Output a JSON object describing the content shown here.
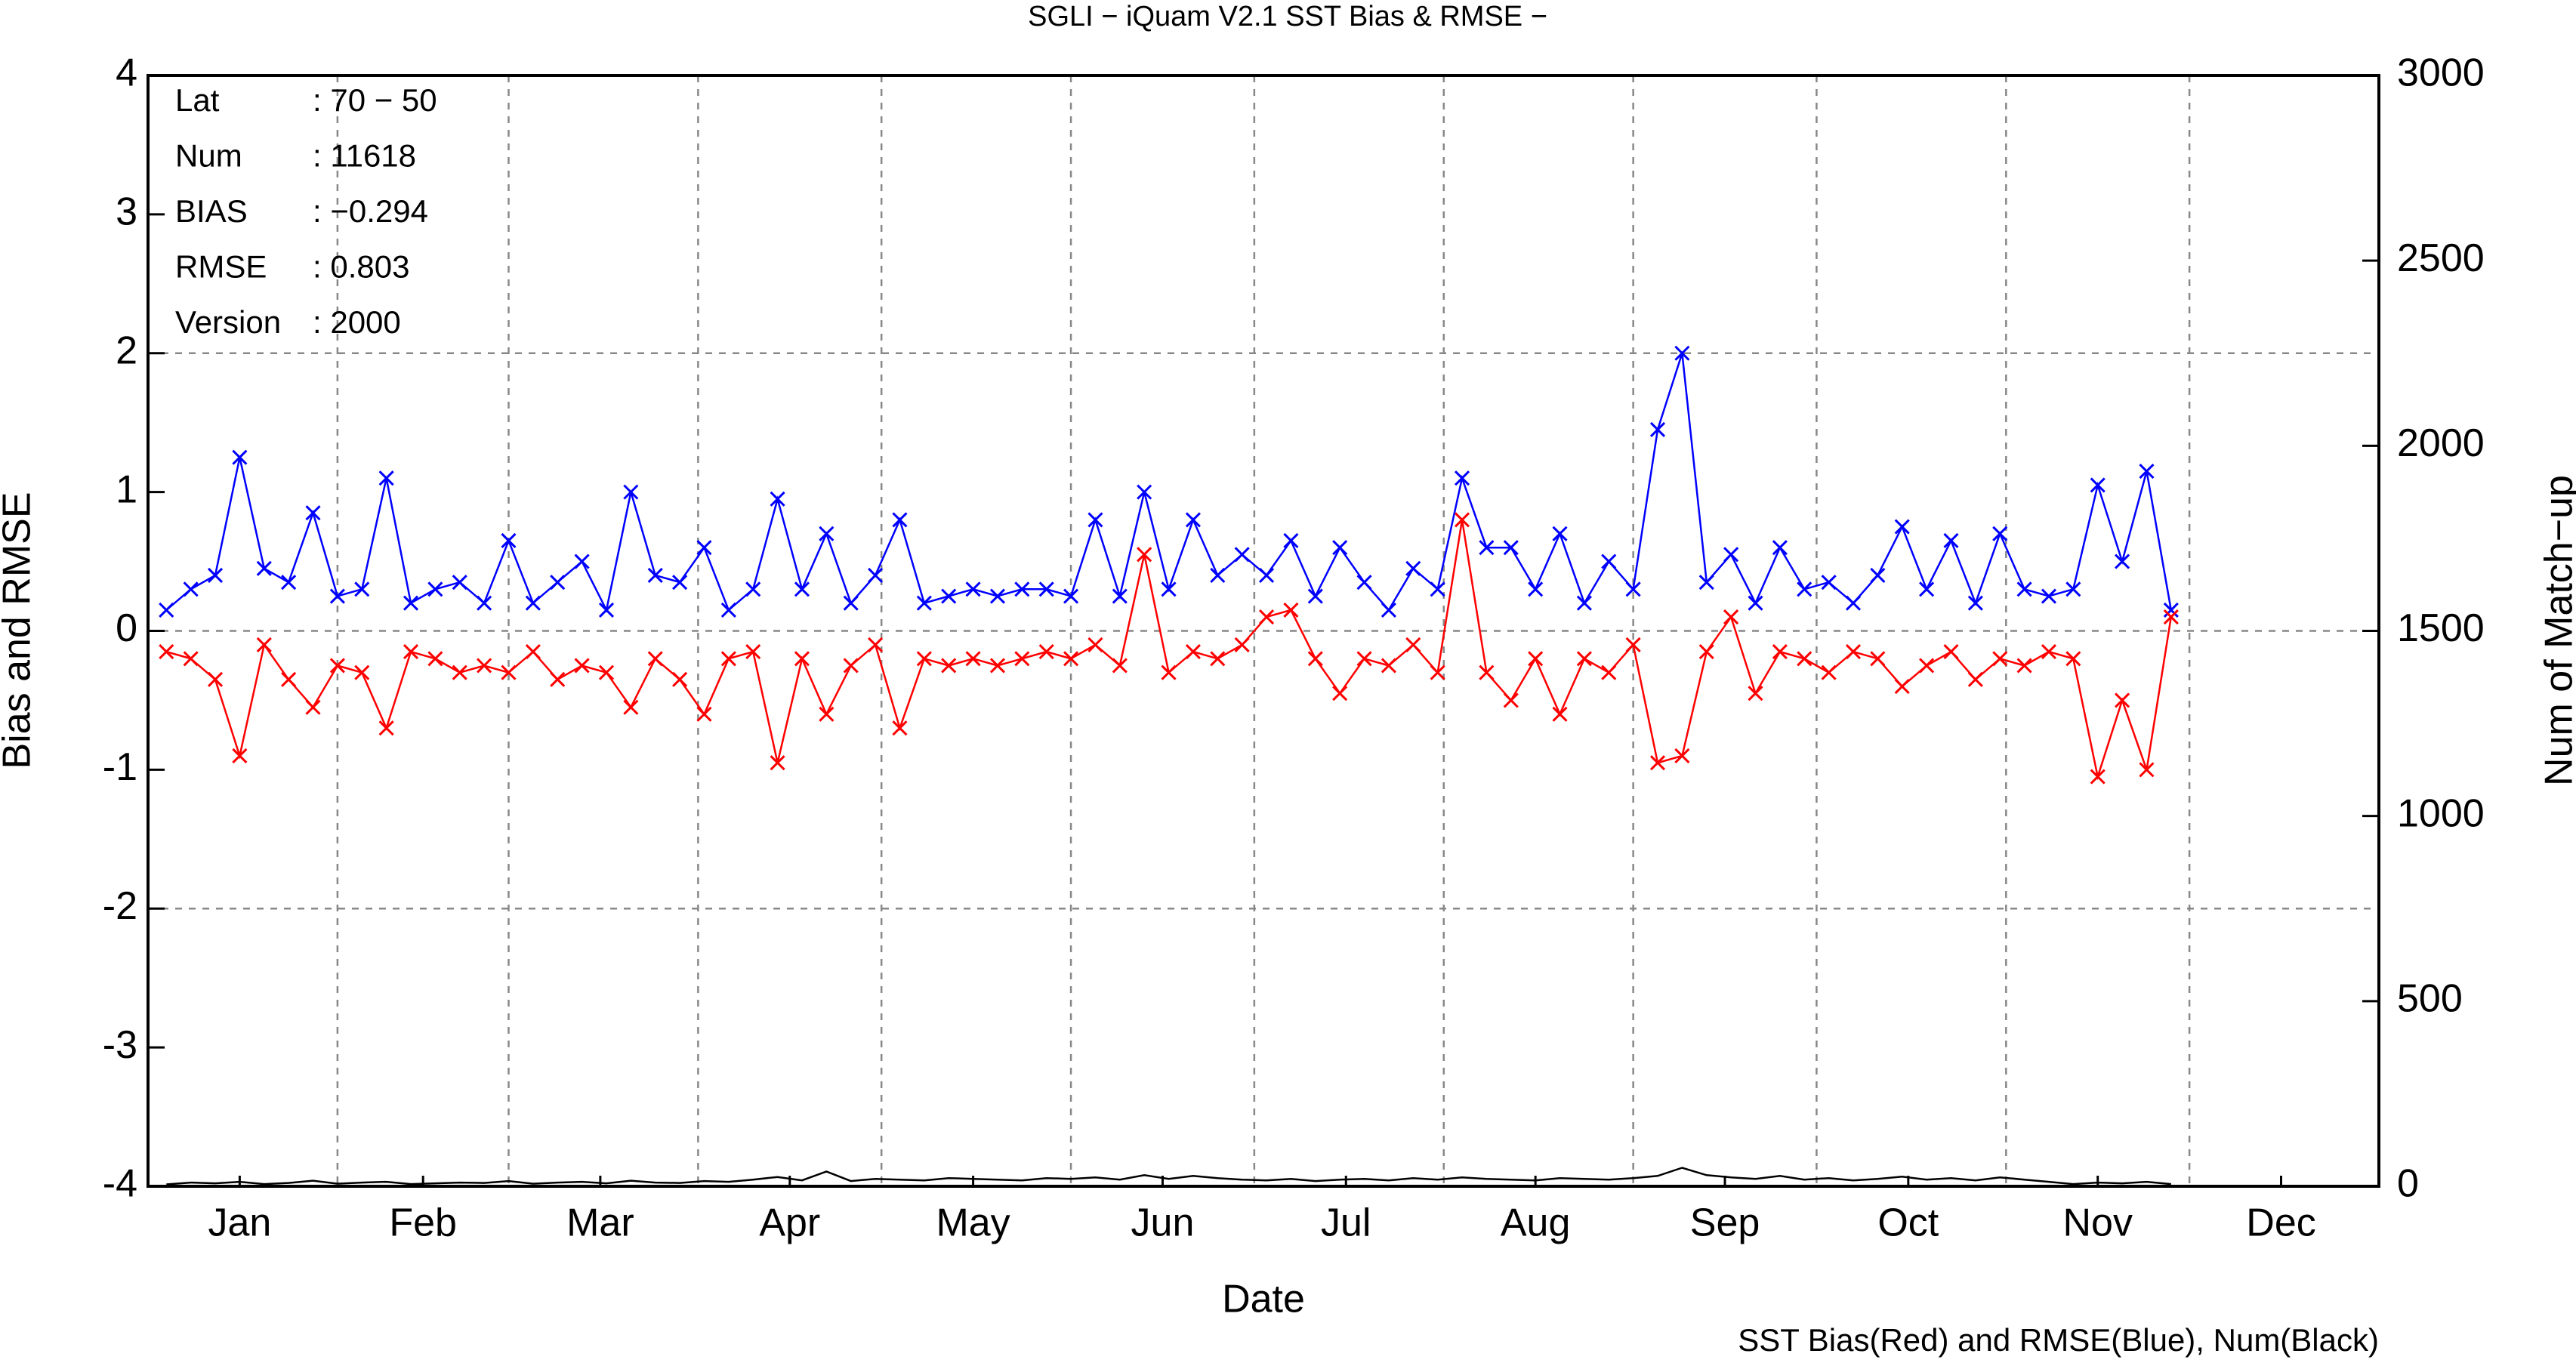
{
  "chart_data": {
    "type": "line",
    "title": "SGLI − iQuam V2.1 SST Bias & RMSE  −",
    "x_label": "Date",
    "y_label": "Bias and RMSE",
    "y2_label": "Num of Match−up",
    "footnote": "SST Bias(Red) and RMSE(Blue), Num(Black)",
    "annotations": [
      {
        "label": "Lat",
        "text": ": 70 − 50"
      },
      {
        "label": "Num",
        "text": ": 11618"
      },
      {
        "label": "BIAS",
        "text": ": −0.294"
      },
      {
        "label": "RMSE",
        "text": ": 0.803"
      },
      {
        "label": "Version",
        "text": ": 2000"
      }
    ],
    "xlim": [
      1,
      366
    ],
    "xticks": [
      {
        "value": 16,
        "label": "Jan"
      },
      {
        "value": 46,
        "label": "Feb"
      },
      {
        "value": 75,
        "label": "Mar"
      },
      {
        "value": 106,
        "label": "Apr"
      },
      {
        "value": 136,
        "label": "May"
      },
      {
        "value": 167,
        "label": "Jun"
      },
      {
        "value": 197,
        "label": "Jul"
      },
      {
        "value": 228,
        "label": "Aug"
      },
      {
        "value": 259,
        "label": "Sep"
      },
      {
        "value": 289,
        "label": "Oct"
      },
      {
        "value": 320,
        "label": "Nov"
      },
      {
        "value": 350,
        "label": "Dec"
      }
    ],
    "xgrid": [
      32,
      60,
      91,
      121,
      152,
      182,
      213,
      244,
      274,
      305,
      335
    ],
    "ylim": [
      -4,
      4
    ],
    "yticks": [
      -4,
      -3,
      -2,
      -1,
      0,
      1,
      2,
      3,
      4
    ],
    "ygrid": [
      -2,
      0,
      2
    ],
    "y2lim": [
      0,
      3000
    ],
    "y2ticks": [
      0,
      500,
      1000,
      1500,
      2000,
      2500,
      3000
    ],
    "grid": true,
    "x": [
      4,
      8,
      12,
      16,
      20,
      24,
      28,
      32,
      36,
      40,
      44,
      48,
      52,
      56,
      60,
      64,
      68,
      72,
      76,
      80,
      84,
      88,
      92,
      96,
      100,
      104,
      108,
      112,
      116,
      120,
      124,
      128,
      132,
      136,
      140,
      144,
      148,
      152,
      156,
      160,
      164,
      168,
      172,
      176,
      180,
      184,
      188,
      192,
      196,
      200,
      204,
      208,
      212,
      216,
      220,
      224,
      228,
      232,
      236,
      240,
      244,
      248,
      252,
      256,
      260,
      264,
      268,
      272,
      276,
      280,
      284,
      288,
      292,
      296,
      300,
      304,
      308,
      312,
      316,
      320,
      324,
      328,
      332
    ],
    "series": [
      {
        "color": "#0000ff",
        "marker": "x",
        "values": [
          0.15,
          0.3,
          0.4,
          1.25,
          0.45,
          0.35,
          0.85,
          0.25,
          0.3,
          1.1,
          0.2,
          0.3,
          0.35,
          0.2,
          0.65,
          0.2,
          0.35,
          0.5,
          0.15,
          1.0,
          0.4,
          0.35,
          0.6,
          0.15,
          0.3,
          0.95,
          0.3,
          0.7,
          0.2,
          0.4,
          0.8,
          0.2,
          0.25,
          0.3,
          0.25,
          0.3,
          0.3,
          0.25,
          0.8,
          0.25,
          1.0,
          0.3,
          0.8,
          0.4,
          0.55,
          0.4,
          0.65,
          0.25,
          0.6,
          0.35,
          0.15,
          0.45,
          0.3,
          1.1,
          0.6,
          0.6,
          0.3,
          0.7,
          0.2,
          0.5,
          0.3,
          1.45,
          2.0,
          0.35,
          0.55,
          0.2,
          0.6,
          0.3,
          0.35,
          0.2,
          0.4,
          0.75,
          0.3,
          0.65,
          0.2,
          0.7,
          0.3,
          0.25,
          0.3,
          1.05,
          0.5,
          1.15,
          0.15
        ]
      },
      {
        "color": "#ff0000",
        "marker": "x",
        "values": [
          -0.15,
          -0.2,
          -0.35,
          -0.9,
          -0.1,
          -0.35,
          -0.55,
          -0.25,
          -0.3,
          -0.7,
          -0.15,
          -0.2,
          -0.3,
          -0.25,
          -0.3,
          -0.15,
          -0.35,
          -0.25,
          -0.3,
          -0.55,
          -0.2,
          -0.35,
          -0.6,
          -0.2,
          -0.15,
          -0.95,
          -0.2,
          -0.6,
          -0.25,
          -0.1,
          -0.7,
          -0.2,
          -0.25,
          -0.2,
          -0.25,
          -0.2,
          -0.15,
          -0.2,
          -0.1,
          -0.25,
          0.55,
          -0.3,
          -0.15,
          -0.2,
          -0.1,
          0.1,
          0.15,
          -0.2,
          -0.45,
          -0.2,
          -0.25,
          -0.1,
          -0.3,
          0.8,
          -0.3,
          -0.5,
          -0.2,
          -0.6,
          -0.2,
          -0.3,
          -0.1,
          -0.95,
          -0.9,
          -0.15,
          0.1,
          -0.45,
          -0.15,
          -0.2,
          -0.3,
          -0.15,
          -0.2,
          -0.4,
          -0.25,
          -0.15,
          -0.35,
          -0.2,
          -0.25,
          -0.15,
          -0.2,
          -1.05,
          -0.5,
          -1.0,
          0.1
        ]
      },
      {
        "color": "#000000",
        "axis": "y2",
        "values": [
          5,
          10,
          8,
          12,
          6,
          9,
          15,
          7,
          10,
          12,
          6,
          8,
          10,
          9,
          14,
          7,
          10,
          12,
          8,
          15,
          10,
          9,
          14,
          12,
          18,
          25,
          16,
          40,
          14,
          20,
          18,
          16,
          22,
          20,
          18,
          16,
          22,
          20,
          24,
          18,
          30,
          20,
          28,
          22,
          18,
          16,
          20,
          14,
          18,
          20,
          16,
          22,
          18,
          24,
          20,
          18,
          16,
          22,
          20,
          18,
          22,
          28,
          50,
          30,
          24,
          20,
          28,
          18,
          22,
          16,
          20,
          26,
          18,
          22,
          16,
          24,
          18,
          12,
          6,
          10,
          8,
          12,
          6
        ]
      }
    ]
  }
}
